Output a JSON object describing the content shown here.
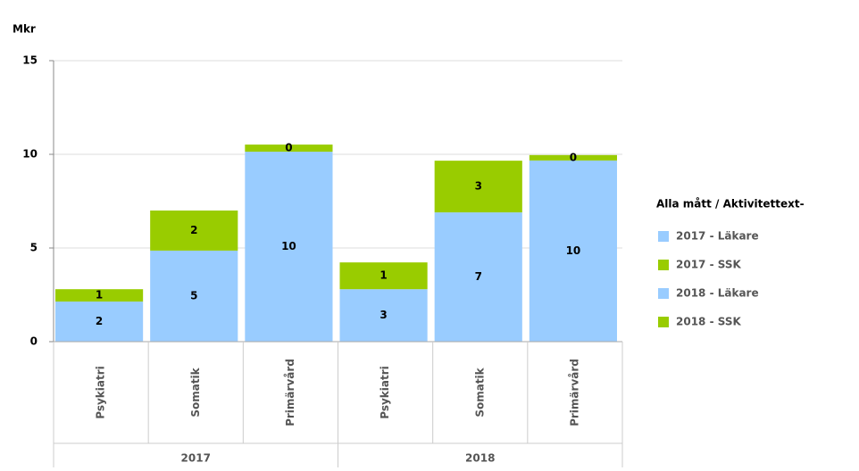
{
  "chart_data": {
    "type": "stacked_bar",
    "y_axis_label": "Mkr",
    "legend_title": "Alla mått / Aktivitettext-",
    "categories": [
      "Psykiatri",
      "Somatik",
      "Primärvård",
      "Psykiatri",
      "Somatik",
      "Primärvård"
    ],
    "category_groups": [
      "2017",
      "2018"
    ],
    "series": [
      {
        "name": "2017 - Läkare",
        "color": "#99ccff",
        "values": [
          2.14,
          4.86,
          10.14,
          null,
          null,
          null
        ],
        "value_labels": [
          "2",
          "5",
          "10",
          null,
          null,
          null
        ]
      },
      {
        "name": "2017 - SSK",
        "color": "#99cc00",
        "values": [
          0.66,
          2.14,
          0.38,
          null,
          null,
          null
        ],
        "value_labels": [
          "1",
          "2",
          "0",
          null,
          null,
          null
        ]
      },
      {
        "name": "2018 - Läkare",
        "color": "#99ccff",
        "values": [
          null,
          null,
          null,
          2.8,
          6.9,
          9.67
        ],
        "value_labels": [
          null,
          null,
          null,
          "3",
          "7",
          "10"
        ]
      },
      {
        "name": "2018 - SSK",
        "color": "#99cc00",
        "values": [
          null,
          null,
          null,
          1.43,
          2.76,
          0.29
        ],
        "value_labels": [
          null,
          null,
          null,
          "1",
          "3",
          "0"
        ]
      }
    ],
    "ylim": [
      0,
      15
    ],
    "yticks": [
      0,
      5,
      10,
      15
    ],
    "grid": true,
    "legend": "right"
  }
}
